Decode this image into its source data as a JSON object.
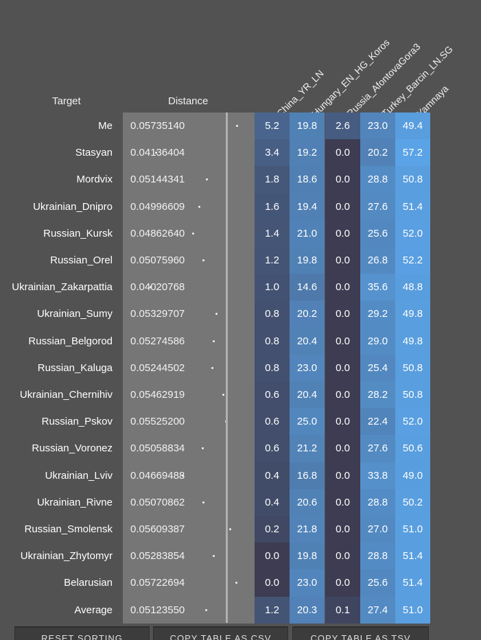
{
  "headers": {
    "target": "Target",
    "distance": "Distance",
    "columns": [
      "China_YR_LN",
      "Hungary_EN_HG_Koros",
      "Russia_AfontovaGora3",
      "Turkey_Barcin_LN.SG",
      "Yamnaya"
    ]
  },
  "rows": [
    {
      "target": "Me",
      "distance": "0.05735140",
      "values": [
        "5.2",
        "19.8",
        "2.6",
        "23.0",
        "49.4"
      ]
    },
    {
      "target": "Stasyan",
      "distance": "0.04136404",
      "values": [
        "3.4",
        "19.2",
        "0.0",
        "20.2",
        "57.2"
      ]
    },
    {
      "target": "Mordvix",
      "distance": "0.05144341",
      "values": [
        "1.8",
        "18.6",
        "0.0",
        "28.8",
        "50.8"
      ]
    },
    {
      "target": "Ukrainian_Dnipro",
      "distance": "0.04996609",
      "values": [
        "1.6",
        "19.4",
        "0.0",
        "27.6",
        "51.4"
      ]
    },
    {
      "target": "Russian_Kursk",
      "distance": "0.04862640",
      "values": [
        "1.4",
        "21.0",
        "0.0",
        "25.6",
        "52.0"
      ]
    },
    {
      "target": "Russian_Orel",
      "distance": "0.05075960",
      "values": [
        "1.2",
        "19.8",
        "0.0",
        "26.8",
        "52.2"
      ]
    },
    {
      "target": "Ukrainian_Zakarpattia",
      "distance": "0.04020768",
      "values": [
        "1.0",
        "14.6",
        "0.0",
        "35.6",
        "48.8"
      ]
    },
    {
      "target": "Ukrainian_Sumy",
      "distance": "0.05329707",
      "values": [
        "0.8",
        "20.2",
        "0.0",
        "29.2",
        "49.8"
      ]
    },
    {
      "target": "Russian_Belgorod",
      "distance": "0.05274586",
      "values": [
        "0.8",
        "20.4",
        "0.0",
        "29.0",
        "49.8"
      ]
    },
    {
      "target": "Russian_Kaluga",
      "distance": "0.05244502",
      "values": [
        "0.8",
        "23.0",
        "0.0",
        "25.4",
        "50.8"
      ]
    },
    {
      "target": "Ukrainian_Chernihiv",
      "distance": "0.05462919",
      "values": [
        "0.6",
        "20.4",
        "0.0",
        "28.2",
        "50.8"
      ]
    },
    {
      "target": "Russian_Pskov",
      "distance": "0.05525200",
      "values": [
        "0.6",
        "25.0",
        "0.0",
        "22.4",
        "52.0"
      ]
    },
    {
      "target": "Russian_Voronez",
      "distance": "0.05058834",
      "values": [
        "0.6",
        "21.2",
        "0.0",
        "27.6",
        "50.6"
      ]
    },
    {
      "target": "Ukrainian_Lviv",
      "distance": "0.04669488",
      "values": [
        "0.4",
        "16.8",
        "0.0",
        "33.8",
        "49.0"
      ]
    },
    {
      "target": "Ukrainian_Rivne",
      "distance": "0.05070862",
      "values": [
        "0.4",
        "20.6",
        "0.0",
        "28.8",
        "50.2"
      ]
    },
    {
      "target": "Russian_Smolensk",
      "distance": "0.05609387",
      "values": [
        "0.2",
        "21.8",
        "0.0",
        "27.0",
        "51.0"
      ]
    },
    {
      "target": "Ukrainian_Zhytomyr",
      "distance": "0.05283854",
      "values": [
        "0.0",
        "19.8",
        "0.0",
        "28.8",
        "51.4"
      ]
    },
    {
      "target": "Belarusian",
      "distance": "0.05722694",
      "values": [
        "0.0",
        "23.0",
        "0.0",
        "25.6",
        "51.4"
      ]
    },
    {
      "target": "Average",
      "distance": "0.05123550",
      "values": [
        "1.2",
        "20.3",
        "0.1",
        "27.4",
        "51.0"
      ]
    }
  ],
  "buttons": [
    "RESET SORTING",
    "COPY TABLE AS CSV",
    "COPY TABLE AS TSV"
  ],
  "colors": {
    "background": "#525252",
    "distance_bg": "#767676",
    "heat_zero": "#3d3c52",
    "heat_max": "#5aa3e6"
  }
}
